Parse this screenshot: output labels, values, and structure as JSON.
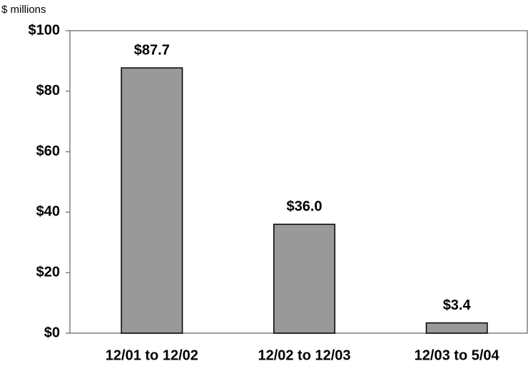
{
  "chart_data": {
    "type": "bar",
    "y_axis_label": "$ millions",
    "categories": [
      "12/01 to 12/02",
      "12/02 to 12/03",
      "12/03 to 5/04"
    ],
    "values": [
      87.7,
      36.0,
      3.4
    ],
    "value_labels": [
      "$87.7",
      "$36.0",
      "$3.4"
    ],
    "color": "#999999",
    "ylim": [
      0,
      100
    ],
    "yticks": [
      {
        "value": 0,
        "label": "$0"
      },
      {
        "value": 20,
        "label": "$20"
      },
      {
        "value": 40,
        "label": "$40"
      },
      {
        "value": 60,
        "label": "$60"
      },
      {
        "value": 80,
        "label": "$80"
      },
      {
        "value": 100,
        "label": "$100"
      }
    ],
    "grid": false
  }
}
